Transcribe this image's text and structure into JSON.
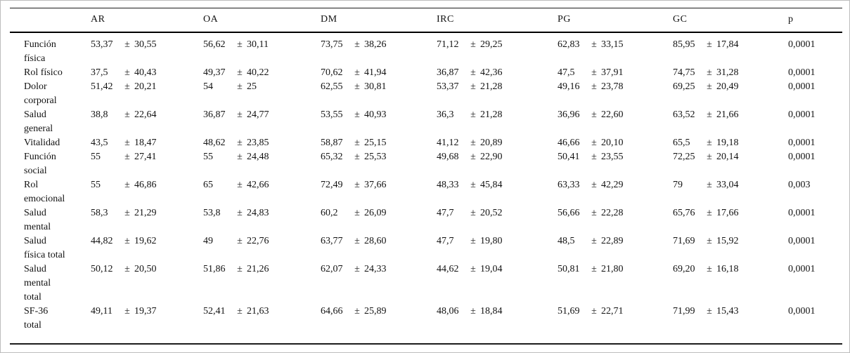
{
  "table": {
    "plus_minus": "±",
    "columns": [
      "",
      "AR",
      "OA",
      "DM",
      "IRC",
      "PG",
      "GC",
      "p"
    ],
    "rows": [
      {
        "label": "Función física",
        "label_lines": [
          "Función",
          "física"
        ],
        "values": [
          {
            "mean": "53,37",
            "sd": "30,55"
          },
          {
            "mean": "56,62",
            "sd": "30,11"
          },
          {
            "mean": "73,75",
            "sd": "38,26"
          },
          {
            "mean": "71,12",
            "sd": "29,25"
          },
          {
            "mean": "62,83",
            "sd": "33,15"
          },
          {
            "mean": "85,95",
            "sd": "17,84"
          }
        ],
        "p": "0,0001"
      },
      {
        "label": "Rol físico",
        "label_lines": [
          "Rol físico"
        ],
        "values": [
          {
            "mean": "37,5",
            "sd": "40,43"
          },
          {
            "mean": "49,37",
            "sd": "40,22"
          },
          {
            "mean": "70,62",
            "sd": "41,94"
          },
          {
            "mean": "36,87",
            "sd": "42,36"
          },
          {
            "mean": "47,5",
            "sd": "37,91"
          },
          {
            "mean": "74,75",
            "sd": "31,28"
          }
        ],
        "p": "0,0001"
      },
      {
        "label": "Dolor corporal",
        "label_lines": [
          "Dolor",
          "corporal"
        ],
        "values": [
          {
            "mean": "51,42",
            "sd": "20,21"
          },
          {
            "mean": "54",
            "sd": "25"
          },
          {
            "mean": "62,55",
            "sd": "30,81"
          },
          {
            "mean": "53,37",
            "sd": "21,28"
          },
          {
            "mean": "49,16",
            "sd": "23,78"
          },
          {
            "mean": "69,25",
            "sd": "20,49"
          }
        ],
        "p": "0,0001"
      },
      {
        "label": "Salud general",
        "label_lines": [
          "Salud",
          "general"
        ],
        "values": [
          {
            "mean": "38,8",
            "sd": "22,64"
          },
          {
            "mean": "36,87",
            "sd": "24,77"
          },
          {
            "mean": "53,55",
            "sd": "40,93"
          },
          {
            "mean": "36,3",
            "sd": "21,28"
          },
          {
            "mean": "36,96",
            "sd": "22,60"
          },
          {
            "mean": "63,52",
            "sd": "21,66"
          }
        ],
        "p": "0,0001"
      },
      {
        "label": "Vitalidad",
        "label_lines": [
          "Vitalidad"
        ],
        "values": [
          {
            "mean": "43,5",
            "sd": "18,47"
          },
          {
            "mean": "48,62",
            "sd": "23,85"
          },
          {
            "mean": "58,87",
            "sd": "25,15"
          },
          {
            "mean": "41,12",
            "sd": "20,89"
          },
          {
            "mean": "46,66",
            "sd": "20,10"
          },
          {
            "mean": "65,5",
            "sd": "19,18"
          }
        ],
        "p": "0,0001"
      },
      {
        "label": "Función social",
        "label_lines": [
          "Función",
          "social"
        ],
        "values": [
          {
            "mean": "55",
            "sd": "27,41"
          },
          {
            "mean": "55",
            "sd": "24,48"
          },
          {
            "mean": "65,32",
            "sd": "25,53"
          },
          {
            "mean": "49,68",
            "sd": "22,90"
          },
          {
            "mean": "50,41",
            "sd": "23,55"
          },
          {
            "mean": "72,25",
            "sd": "20,14"
          }
        ],
        "p": "0,0001"
      },
      {
        "label": "Rol emocional",
        "label_lines": [
          "Rol",
          "emocional"
        ],
        "values": [
          {
            "mean": "55",
            "sd": "46,86"
          },
          {
            "mean": "65",
            "sd": "42,66"
          },
          {
            "mean": "72,49",
            "sd": "37,66"
          },
          {
            "mean": "48,33",
            "sd": "45,84"
          },
          {
            "mean": "63,33",
            "sd": "42,29"
          },
          {
            "mean": "79",
            "sd": "33,04"
          }
        ],
        "p": "0,003"
      },
      {
        "label": "Salud mental",
        "label_lines": [
          "Salud",
          "mental"
        ],
        "values": [
          {
            "mean": "58,3",
            "sd": "21,29"
          },
          {
            "mean": "53,8",
            "sd": "24,83"
          },
          {
            "mean": "60,2",
            "sd": "26,09"
          },
          {
            "mean": "47,7",
            "sd": "20,52"
          },
          {
            "mean": "56,66",
            "sd": "22,28"
          },
          {
            "mean": "65,76",
            "sd": "17,66"
          }
        ],
        "p": "0,0001"
      },
      {
        "label": "Salud física total",
        "label_lines": [
          "Salud",
          "física total"
        ],
        "values": [
          {
            "mean": "44,82",
            "sd": "19,62"
          },
          {
            "mean": "49",
            "sd": "22,76"
          },
          {
            "mean": "63,77",
            "sd": "28,60"
          },
          {
            "mean": "47,7",
            "sd": "19,80"
          },
          {
            "mean": "48,5",
            "sd": "22,89"
          },
          {
            "mean": "71,69",
            "sd": "15,92"
          }
        ],
        "p": "0,0001"
      },
      {
        "label": "Salud mental total",
        "label_lines": [
          "Salud",
          "mental",
          "total"
        ],
        "values": [
          {
            "mean": "50,12",
            "sd": "20,50"
          },
          {
            "mean": "51,86",
            "sd": "21,26"
          },
          {
            "mean": "62,07",
            "sd": "24,33"
          },
          {
            "mean": "44,62",
            "sd": "19,04"
          },
          {
            "mean": "50,81",
            "sd": "21,80"
          },
          {
            "mean": "69,20",
            "sd": "16,18"
          }
        ],
        "p": "0,0001"
      },
      {
        "label": "SF-36 total",
        "label_lines": [
          "SF-36",
          "total"
        ],
        "values": [
          {
            "mean": "49,11",
            "sd": "19,37"
          },
          {
            "mean": "52,41",
            "sd": "21,63"
          },
          {
            "mean": "64,66",
            "sd": "25,89"
          },
          {
            "mean": "48,06",
            "sd": "18,84"
          },
          {
            "mean": "51,69",
            "sd": "22,71"
          },
          {
            "mean": "71,99",
            "sd": "15,43"
          }
        ],
        "p": "0,0001"
      }
    ]
  }
}
